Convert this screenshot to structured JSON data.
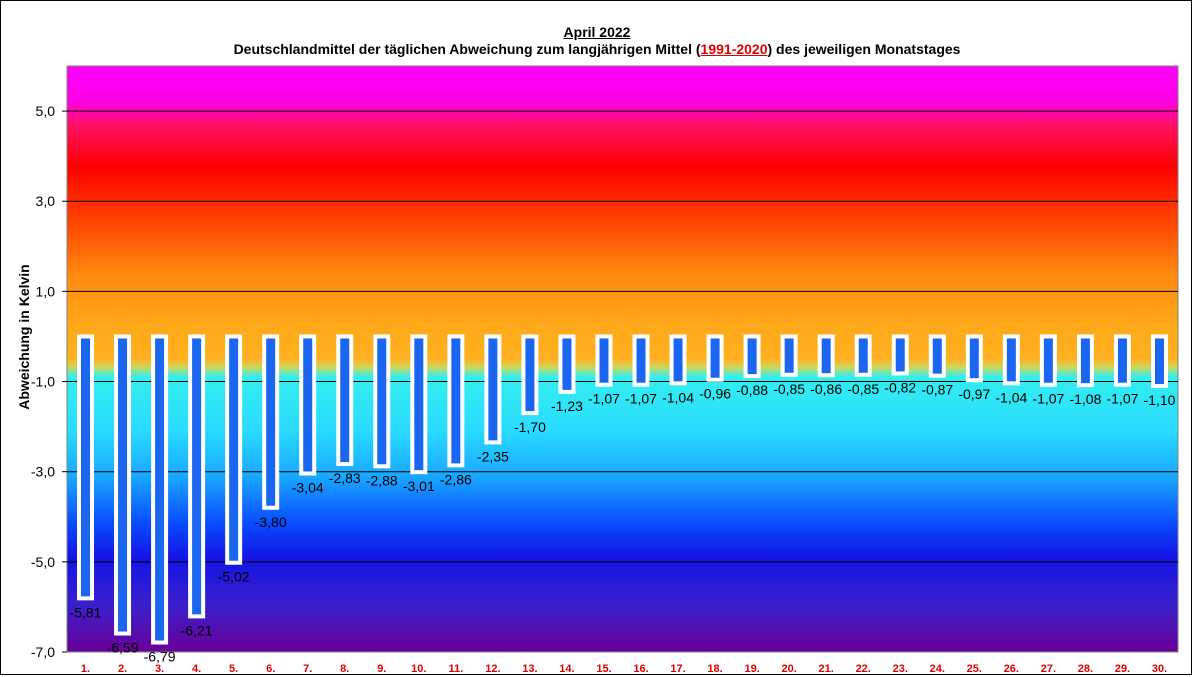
{
  "chart_data": {
    "type": "bar",
    "title": "April 2022",
    "subtitle_pre": "Deutschlandmittel der täglichen Abweichung zum langjährigen Mittel (",
    "subtitle_ref": "1991-2020",
    "subtitle_post": ") des jeweiligen Monatstages",
    "ylabel": "Abweichung in Kelvin",
    "xlabel": "",
    "ylim": [
      -7,
      6
    ],
    "yticks": [
      5,
      3,
      1,
      -1,
      -3,
      -5,
      -7
    ],
    "ytick_labels": [
      "5,0",
      "3,0",
      "1,0",
      "-1,0",
      "-3,0",
      "-5,0",
      "-7,0"
    ],
    "grid": true,
    "categories": [
      "1.",
      "2.",
      "3.",
      "4.",
      "5.",
      "6.",
      "7.",
      "8.",
      "9.",
      "10.",
      "11.",
      "12.",
      "13.",
      "14.",
      "15.",
      "16.",
      "17.",
      "18.",
      "19.",
      "20.",
      "21.",
      "22.",
      "23.",
      "24.",
      "25.",
      "26.",
      "27.",
      "28.",
      "29.",
      "30."
    ],
    "values": [
      -5.81,
      -6.59,
      -6.79,
      -6.21,
      -5.02,
      -3.8,
      -3.04,
      -2.83,
      -2.88,
      -3.01,
      -2.86,
      -2.35,
      -1.7,
      -1.23,
      -1.07,
      -1.07,
      -1.04,
      -0.96,
      -0.88,
      -0.85,
      -0.86,
      -0.85,
      -0.82,
      -0.87,
      -0.97,
      -1.04,
      -1.07,
      -1.08,
      -1.07,
      -1.1
    ],
    "value_labels": [
      "-5,81",
      "-6,59",
      "-6,79",
      "-6,21",
      "-5,02",
      "-3,80",
      "-3,04",
      "-2,83",
      "-2,88",
      "-3,01",
      "-2,86",
      "-2,35",
      "-1,70",
      "-1,23",
      "-1,07",
      "-1,07",
      "-1,04",
      "-0,96",
      "-0,88",
      "-0,85",
      "-0,86",
      "-0,85",
      "-0,82",
      "-0,87",
      "-0,97",
      "-1,04",
      "-1,07",
      "-1,08",
      "-1,07",
      "-1,10"
    ],
    "colors": {
      "bar_fill": "#1a66f0",
      "bar_outline": "#ffffff",
      "category_label": "#e00000",
      "grid": "#000000"
    }
  }
}
